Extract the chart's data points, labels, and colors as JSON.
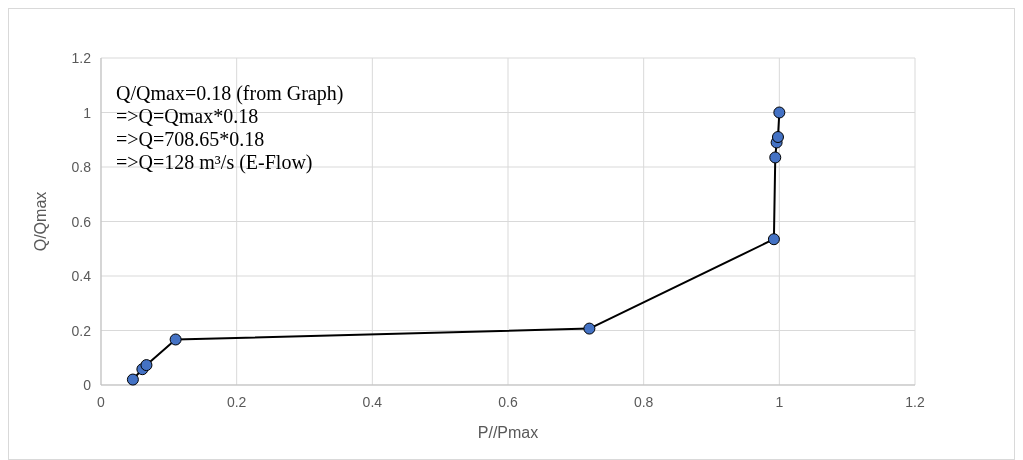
{
  "chart_data": {
    "type": "line",
    "xlabel": "P//Pmax",
    "ylabel": "Q/Qmax",
    "x": [
      0.047,
      0.061,
      0.067,
      0.11,
      0.72,
      0.992,
      0.994,
      0.996,
      0.998,
      1
    ],
    "series": [
      {
        "color": "#4472c4",
        "values": [
          0.02,
          0.058,
          0.073,
          0.167,
          0.207,
          0.535,
          0.835,
          0.89,
          0.91,
          1
        ]
      }
    ],
    "xlim": [
      0,
      1.2
    ],
    "xticks": [
      0,
      0.2,
      0.4,
      0.6,
      0.8,
      1,
      1.2
    ],
    "ylim": [
      0,
      1.2
    ],
    "yticks": [
      0,
      0.2,
      0.4,
      0.6,
      0.8,
      1,
      1.2
    ],
    "grid": true,
    "marker": "circle",
    "line_style": "solid",
    "annotations": [
      "Q/Qmax=0.18 (from Graph)",
      "=>Q=Qmax*0.18",
      "=>Q=708.65*0.18",
      "=>Q=128 m³/s (E-Flow)"
    ]
  }
}
